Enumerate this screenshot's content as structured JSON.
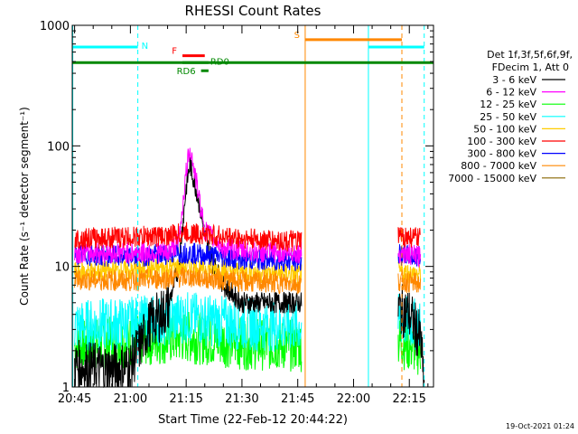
{
  "chart_data": {
    "type": "line",
    "title": "RHESSI Count Rates",
    "xlabel": "Start Time (22-Feb-12 20:44:22)",
    "ylabel": "Count Rate (s⁻¹ detector segment⁻¹)",
    "y_scale": "log",
    "ylim": [
      1,
      1000
    ],
    "x_range": [
      "20:44:22",
      "22:21:30"
    ],
    "x_ticks": [
      "20:45",
      "21:00",
      "21:15",
      "21:30",
      "21:45",
      "22:00",
      "22:15"
    ],
    "y_ticks": [
      "1",
      "10",
      "100",
      "1000"
    ],
    "legend": {
      "placement": "right",
      "header_lines": [
        "Det 1f,3f,5f,6f,9f,",
        "FDecim 1, Att 0"
      ]
    },
    "series": [
      {
        "name": "3 - 6 keV",
        "color": "#000000",
        "points": [
          [
            "20:45",
            1.5
          ],
          [
            "20:55",
            1.4
          ],
          [
            "21:00",
            1.5
          ],
          [
            "21:05",
            3.2
          ],
          [
            "21:10",
            4.5
          ],
          [
            "21:13",
            10
          ],
          [
            "21:15",
            45
          ],
          [
            "21:16",
            70
          ],
          [
            "21:18",
            40
          ],
          [
            "21:20",
            18
          ],
          [
            "21:22",
            11
          ],
          [
            "21:25",
            7
          ],
          [
            "21:30",
            5
          ],
          [
            "21:40",
            5
          ],
          [
            "21:45",
            5
          ],
          [
            "21:46",
            5
          ],
          [
            "22:12",
            4.5
          ],
          [
            "22:15",
            4
          ],
          [
            "22:18",
            2.5
          ],
          [
            "22:19",
            1
          ]
        ]
      },
      {
        "name": "6 - 12 keV",
        "color": "#ff00ff",
        "points": [
          [
            "20:45",
            13
          ],
          [
            "21:00",
            13
          ],
          [
            "21:10",
            13
          ],
          [
            "21:13",
            16
          ],
          [
            "21:15",
            60
          ],
          [
            "21:16",
            100
          ],
          [
            "21:18",
            45
          ],
          [
            "21:20",
            20
          ],
          [
            "21:25",
            14
          ],
          [
            "21:35",
            13
          ],
          [
            "21:46",
            13
          ],
          [
            "22:12",
            13
          ],
          [
            "22:18",
            12
          ]
        ]
      },
      {
        "name": "12 - 25 keV",
        "color": "#00ff00",
        "points": [
          [
            "20:45",
            2.2
          ],
          [
            "21:00",
            2.4
          ],
          [
            "21:15",
            2.6
          ],
          [
            "21:30",
            2.3
          ],
          [
            "21:46",
            2.2
          ],
          [
            "22:12",
            2.4
          ],
          [
            "22:18",
            2.0
          ]
        ]
      },
      {
        "name": "25 - 50 keV",
        "color": "#00ffff",
        "points": [
          [
            "20:45",
            3.2
          ],
          [
            "21:00",
            3.4
          ],
          [
            "21:15",
            3.8
          ],
          [
            "21:30",
            3.3
          ],
          [
            "21:46",
            3.2
          ],
          [
            "22:12",
            3.6
          ],
          [
            "22:18",
            3.2
          ]
        ]
      },
      {
        "name": "50 - 100 keV",
        "color": "#ffcc00",
        "points": [
          [
            "20:45",
            9
          ],
          [
            "21:00",
            9.2
          ],
          [
            "21:15",
            10
          ],
          [
            "21:30",
            9
          ],
          [
            "21:46",
            8.5
          ],
          [
            "22:12",
            9
          ],
          [
            "22:18",
            8.5
          ]
        ]
      },
      {
        "name": "100 - 300 keV",
        "color": "#ff0000",
        "points": [
          [
            "20:45",
            17
          ],
          [
            "21:00",
            17.5
          ],
          [
            "21:10",
            18
          ],
          [
            "21:15",
            19
          ],
          [
            "21:30",
            17
          ],
          [
            "21:46",
            16
          ],
          [
            "22:12",
            18
          ],
          [
            "22:18",
            17
          ]
        ]
      },
      {
        "name": "300 - 800 keV",
        "color": "#0000ff",
        "points": [
          [
            "20:45",
            12.5
          ],
          [
            "21:00",
            12
          ],
          [
            "21:15",
            13
          ],
          [
            "21:30",
            11.5
          ],
          [
            "21:46",
            11
          ],
          [
            "22:12",
            12.5
          ],
          [
            "22:18",
            12
          ]
        ]
      },
      {
        "name": "800 - 7000 keV",
        "color": "#ff8800",
        "points": [
          [
            "20:45",
            7.8
          ],
          [
            "21:00",
            7.6
          ],
          [
            "21:15",
            8.2
          ],
          [
            "21:30",
            7.5
          ],
          [
            "21:46",
            7.2
          ],
          [
            "22:12",
            7.6
          ],
          [
            "22:18",
            7.2
          ]
        ]
      },
      {
        "name": "7000 - 15000 keV",
        "color": "#886600",
        "points": []
      }
    ],
    "flag_bars": [
      {
        "label": "N",
        "color": "#00ffff",
        "y": 660,
        "segments": [
          [
            "20:44:22",
            "21:02"
          ],
          [
            "22:04",
            "22:19"
          ]
        ]
      },
      {
        "label": "F",
        "color": "#ff0000",
        "y": 560,
        "segments": [
          [
            "21:14",
            "21:20"
          ]
        ]
      },
      {
        "label": "RD0",
        "color": "#008800",
        "y": 490,
        "segments": [
          [
            "21:14",
            "21:21"
          ]
        ]
      },
      {
        "label": "RD6",
        "color": "#008800",
        "y": 420,
        "segments": [
          [
            "21:19",
            "21:21"
          ]
        ]
      },
      {
        "label": "S",
        "color": "#ff8800",
        "y": 760,
        "segments": [
          [
            "21:47",
            "22:13"
          ]
        ]
      },
      {
        "label": "",
        "color": "#008800",
        "y": 490,
        "segments": [
          [
            "20:44:22",
            "22:21:30"
          ]
        ]
      }
    ],
    "vlines": [
      {
        "t": "20:44:30",
        "color": "#00ffff",
        "style": "solid"
      },
      {
        "t": "21:02",
        "color": "#00ffff",
        "style": "dashed"
      },
      {
        "t": "21:47",
        "color": "#ff8800",
        "style": "solid"
      },
      {
        "t": "22:04",
        "color": "#00ffff",
        "style": "solid"
      },
      {
        "t": "22:13",
        "color": "#ff8800",
        "style": "dashed"
      },
      {
        "t": "22:19",
        "color": "#00ffff",
        "style": "dashed"
      }
    ],
    "data_gap": [
      "21:46",
      "22:12"
    ]
  },
  "footer": {
    "timestamp": "19-Oct-2021 01:24"
  }
}
